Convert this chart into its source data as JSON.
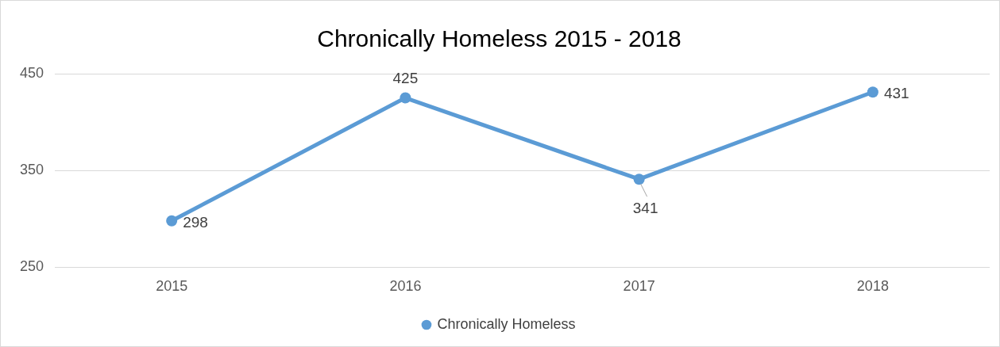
{
  "chart_data": {
    "type": "line",
    "title": "Chronically Homeless 2015 - 2018",
    "categories": [
      "2015",
      "2016",
      "2017",
      "2018"
    ],
    "series": [
      {
        "name": "Chronically Homeless",
        "color": "#5b9bd5",
        "values": [
          298,
          425,
          341,
          431
        ]
      }
    ],
    "ylim": [
      250,
      450
    ],
    "yticks": [
      250,
      350,
      450
    ],
    "grid": "y",
    "legend": "bottom",
    "marker": "circle",
    "line_style": "solid",
    "data_labels": true
  }
}
